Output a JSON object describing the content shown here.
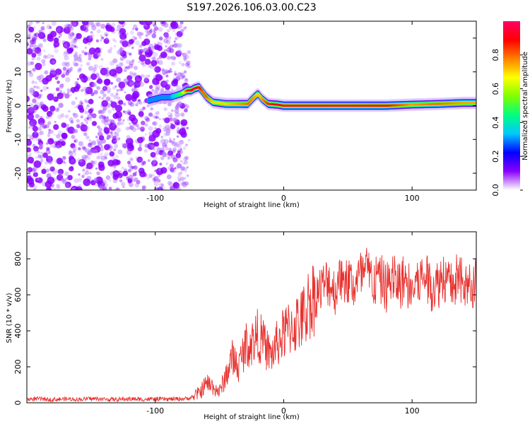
{
  "title": "S197.2026.106.03.00.C23",
  "chart_data": [
    {
      "type": "heatmap",
      "title": "S197.2026.106.03.00.C23",
      "xlabel": "Height of straight line (km)",
      "ylabel": "Frequency (Hz)",
      "xlim": [
        -200,
        150
      ],
      "ylim": [
        -25,
        25
      ],
      "xticks": [
        -100,
        0,
        100
      ],
      "yticks": [
        -20,
        -10,
        0,
        10,
        20
      ],
      "colorbar": {
        "label": "Normalized spectral amplitude",
        "range": [
          0,
          1
        ],
        "ticks": [
          0.0,
          0.2,
          0.4,
          0.6,
          0.8
        ],
        "colormap": [
          "#ffffff",
          "#8a00ff",
          "#0000ff",
          "#00c8ff",
          "#00ff80",
          "#7fff00",
          "#ffff00",
          "#ff8000",
          "#ff0000",
          "#ff0066"
        ]
      },
      "noise_region_x": [
        -200,
        -75
      ],
      "tone_track": {
        "description": "signal frequency vs height",
        "x": [
          -105,
          -95,
          -88,
          -80,
          -75,
          -72,
          -70,
          -66,
          -63,
          -60,
          -55,
          -45,
          -35,
          -28,
          -23,
          -20,
          -17,
          -12,
          -5,
          0,
          20,
          50,
          80,
          100,
          120,
          140,
          150
        ],
        "y": [
          1.5,
          2.5,
          2.5,
          3.5,
          4.5,
          4.5,
          5.0,
          5.5,
          4.0,
          2.5,
          1.0,
          0.5,
          0.5,
          0.5,
          2.5,
          3.5,
          2.0,
          0.5,
          0.3,
          0.0,
          0.0,
          0.0,
          0.0,
          0.3,
          0.5,
          0.8,
          0.8
        ],
        "amplitude": [
          0.3,
          0.3,
          0.3,
          0.5,
          0.85,
          0.9,
          0.95,
          0.9,
          0.8,
          0.8,
          0.7,
          0.7,
          0.75,
          0.8,
          0.75,
          0.7,
          0.75,
          0.85,
          0.9,
          0.95,
          0.95,
          0.95,
          0.9,
          0.75,
          0.8,
          0.75,
          0.75
        ]
      }
    },
    {
      "type": "line",
      "xlabel": "Height of straight line (km)",
      "ylabel": "SNR (10 * v/v)",
      "xlim": [
        -200,
        150
      ],
      "ylim": [
        0,
        950
      ],
      "xticks": [
        -100,
        0,
        100
      ],
      "yticks": [
        0,
        200,
        400,
        600,
        800
      ],
      "color": "#e8322f",
      "series": [
        {
          "name": "SNR",
          "x": [
            -200,
            -190,
            -180,
            -170,
            -160,
            -150,
            -140,
            -130,
            -120,
            -110,
            -100,
            -90,
            -80,
            -75,
            -70,
            -65,
            -60,
            -55,
            -50,
            -45,
            -40,
            -35,
            -30,
            -25,
            -20,
            -15,
            -10,
            -5,
            0,
            5,
            10,
            15,
            20,
            25,
            30,
            35,
            40,
            45,
            50,
            55,
            60,
            65,
            70,
            75,
            80,
            85,
            90,
            95,
            100,
            105,
            110,
            115,
            120,
            125,
            130,
            135,
            140,
            145,
            150
          ],
          "values": [
            20,
            22,
            18,
            21,
            19,
            23,
            20,
            18,
            22,
            19,
            21,
            20,
            22,
            24,
            35,
            60,
            110,
            90,
            60,
            150,
            250,
            200,
            320,
            330,
            380,
            320,
            260,
            330,
            380,
            420,
            440,
            470,
            560,
            600,
            640,
            680,
            620,
            700,
            680,
            650,
            700,
            720,
            670,
            690,
            640,
            700,
            660,
            690,
            620,
            680,
            700,
            650,
            660,
            720,
            640,
            690,
            650,
            640,
            680
          ]
        }
      ]
    }
  ]
}
